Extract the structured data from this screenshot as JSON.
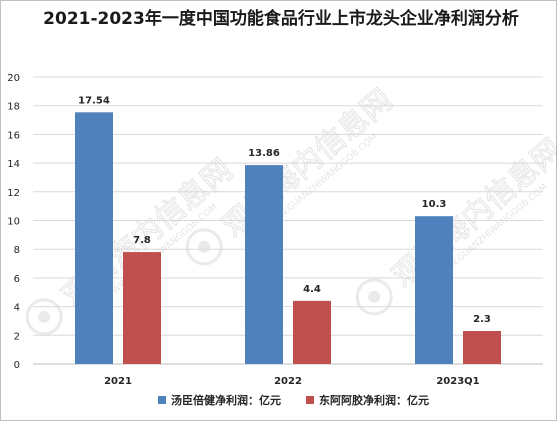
{
  "chart_data": {
    "type": "bar",
    "title": "2021-2023年一度中国功能食品行业上市龙头企业净利润分析",
    "categories": [
      "2021",
      "2022",
      "2023Q1"
    ],
    "series": [
      {
        "name": "汤臣倍健净利润：亿元",
        "color": "#4F81BD",
        "values": [
          17.54,
          13.86,
          10.3
        ]
      },
      {
        "name": "东阿阿胶净利润：亿元",
        "color": "#C0504D",
        "values": [
          7.8,
          4.4,
          2.3
        ]
      }
    ],
    "ylim": [
      0,
      20
    ],
    "yticks": [
      0,
      2,
      4,
      6,
      8,
      10,
      12,
      14,
      16,
      18,
      20
    ],
    "grid": true,
    "legend_position": "bottom"
  },
  "watermark": {
    "text": "观知海内信息网",
    "subtext": "WWW.GUANZHIWANGGOB.COM"
  }
}
